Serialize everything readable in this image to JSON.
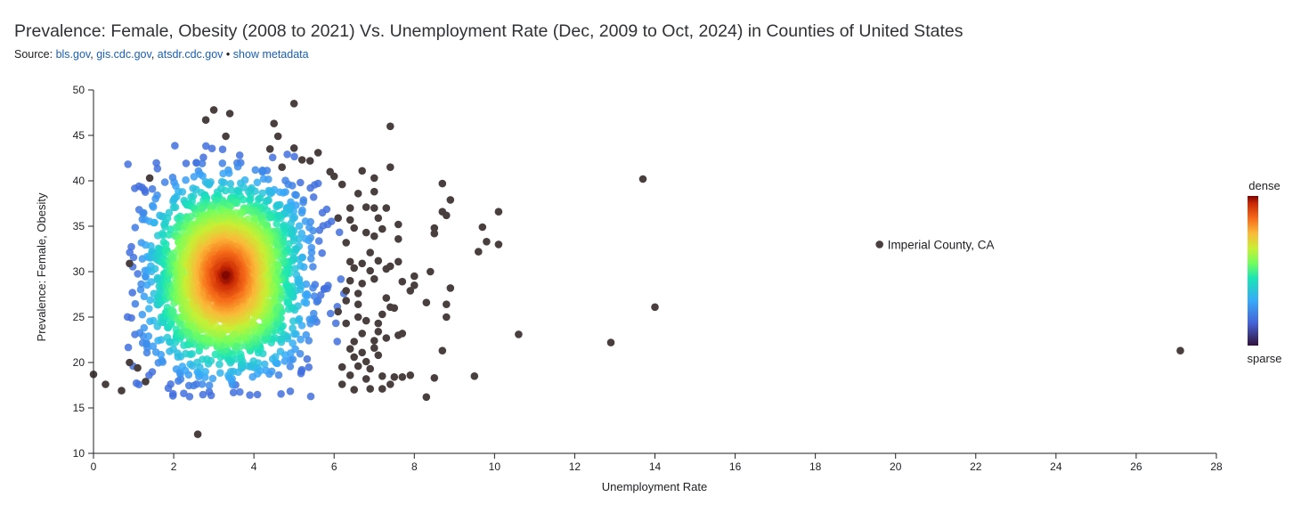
{
  "header": {
    "title": "Prevalence: Female, Obesity (2008 to 2021) Vs. Unemployment Rate (Dec, 2009 to Oct, 2024) in Counties of United States",
    "source_prefix": "Source:",
    "sources": [
      "bls.gov",
      "gis.cdc.gov",
      "atsdr.cdc.gov"
    ],
    "separator": "•",
    "show_metadata": "show metadata"
  },
  "chart_data": {
    "type": "scatter",
    "xlabel": "Unemployment Rate",
    "ylabel": "Prevalence: Female, Obesity",
    "xlim": [
      0,
      28
    ],
    "ylim": [
      10,
      50
    ],
    "xticks": [
      0,
      2,
      4,
      6,
      8,
      10,
      12,
      14,
      16,
      18,
      20,
      22,
      24,
      26,
      28
    ],
    "yticks": [
      10,
      15,
      20,
      25,
      30,
      35,
      40,
      45,
      50
    ],
    "grid": false,
    "coloring": "point density",
    "legend": {
      "position": "right",
      "high_label": "dense",
      "low_label": "sparse"
    },
    "annotation": {
      "label": "Imperial County, CA",
      "x": 19.6,
      "y": 33.0
    },
    "density_core": {
      "center": [
        3.3,
        29.5
      ],
      "spread": [
        0.85,
        5.0
      ],
      "point_count": 2600
    },
    "points": [
      [
        0.0,
        18.7
      ],
      [
        0.3,
        17.6
      ],
      [
        0.7,
        16.9
      ],
      [
        0.9,
        20.0
      ],
      [
        0.9,
        30.9
      ],
      [
        1.1,
        19.4
      ],
      [
        1.4,
        40.3
      ],
      [
        1.3,
        17.9
      ],
      [
        2.6,
        12.1
      ],
      [
        2.8,
        46.7
      ],
      [
        3.0,
        47.8
      ],
      [
        3.4,
        47.4
      ],
      [
        3.3,
        44.9
      ],
      [
        4.5,
        46.3
      ],
      [
        4.6,
        44.9
      ],
      [
        5.0,
        48.5
      ],
      [
        7.4,
        46.0
      ],
      [
        4.4,
        43.5
      ],
      [
        5.0,
        43.6
      ],
      [
        5.2,
        42.3
      ],
      [
        5.4,
        42.2
      ],
      [
        5.6,
        43.1
      ],
      [
        4.7,
        41.5
      ],
      [
        5.9,
        41.0
      ],
      [
        6.0,
        40.5
      ],
      [
        6.7,
        41.1
      ],
      [
        7.0,
        40.3
      ],
      [
        7.4,
        41.5
      ],
      [
        8.7,
        39.7
      ],
      [
        6.2,
        39.6
      ],
      [
        6.6,
        38.6
      ],
      [
        7.0,
        38.8
      ],
      [
        8.9,
        37.9
      ],
      [
        6.4,
        37.0
      ],
      [
        6.8,
        37.1
      ],
      [
        7.0,
        37.0
      ],
      [
        7.3,
        37.0
      ],
      [
        8.7,
        36.6
      ],
      [
        8.8,
        36.2
      ],
      [
        6.1,
        35.9
      ],
      [
        6.4,
        35.7
      ],
      [
        7.1,
        35.9
      ],
      [
        7.6,
        35.2
      ],
      [
        6.5,
        34.8
      ],
      [
        6.8,
        34.3
      ],
      [
        7.2,
        34.7
      ],
      [
        8.5,
        34.8
      ],
      [
        9.7,
        34.9
      ],
      [
        10.1,
        36.6
      ],
      [
        6.3,
        33.2
      ],
      [
        7.0,
        33.9
      ],
      [
        7.6,
        33.6
      ],
      [
        8.5,
        34.2
      ],
      [
        9.8,
        33.3
      ],
      [
        10.1,
        33.0
      ],
      [
        9.6,
        32.2
      ],
      [
        6.9,
        32.1
      ],
      [
        6.4,
        31.1
      ],
      [
        6.7,
        30.9
      ],
      [
        7.1,
        31.2
      ],
      [
        7.4,
        30.6
      ],
      [
        7.6,
        31.1
      ],
      [
        6.5,
        30.4
      ],
      [
        6.9,
        30.1
      ],
      [
        7.3,
        30.3
      ],
      [
        8.0,
        29.5
      ],
      [
        8.4,
        30.0
      ],
      [
        6.4,
        29.0
      ],
      [
        6.7,
        28.7
      ],
      [
        7.0,
        29.2
      ],
      [
        7.7,
        28.9
      ],
      [
        8.0,
        28.5
      ],
      [
        8.9,
        28.2
      ],
      [
        6.3,
        27.9
      ],
      [
        6.6,
        27.6
      ],
      [
        7.3,
        27.1
      ],
      [
        7.9,
        27.9
      ],
      [
        6.3,
        26.8
      ],
      [
        6.6,
        26.4
      ],
      [
        7.4,
        26.1
      ],
      [
        7.5,
        26.0
      ],
      [
        8.3,
        26.6
      ],
      [
        8.8,
        26.4
      ],
      [
        6.1,
        25.6
      ],
      [
        6.6,
        25.0
      ],
      [
        6.8,
        24.6
      ],
      [
        7.2,
        25.3
      ],
      [
        8.8,
        25.0
      ],
      [
        6.3,
        24.3
      ],
      [
        7.1,
        24.3
      ],
      [
        6.7,
        23.2
      ],
      [
        7.1,
        23.4
      ],
      [
        7.6,
        23.0
      ],
      [
        7.7,
        23.2
      ],
      [
        6.5,
        22.3
      ],
      [
        7.0,
        22.4
      ],
      [
        7.3,
        22.7
      ],
      [
        6.4,
        21.5
      ],
      [
        6.7,
        21.1
      ],
      [
        7.0,
        21.6
      ],
      [
        8.7,
        21.3
      ],
      [
        6.5,
        20.6
      ],
      [
        6.8,
        20.1
      ],
      [
        7.1,
        20.8
      ],
      [
        6.2,
        19.5
      ],
      [
        6.6,
        19.6
      ],
      [
        6.9,
        19.3
      ],
      [
        6.4,
        18.6
      ],
      [
        6.8,
        18.2
      ],
      [
        7.2,
        18.5
      ],
      [
        7.5,
        18.4
      ],
      [
        7.7,
        18.4
      ],
      [
        7.9,
        18.6
      ],
      [
        8.5,
        18.3
      ],
      [
        9.5,
        18.5
      ],
      [
        6.2,
        17.6
      ],
      [
        6.5,
        17.0
      ],
      [
        6.9,
        17.1
      ],
      [
        7.2,
        17.1
      ],
      [
        7.4,
        17.6
      ],
      [
        8.3,
        16.2
      ],
      [
        10.6,
        23.1
      ],
      [
        12.9,
        22.2
      ],
      [
        13.7,
        40.2
      ],
      [
        14.0,
        26.1
      ],
      [
        27.1,
        21.3
      ],
      [
        19.6,
        33.0
      ]
    ]
  }
}
